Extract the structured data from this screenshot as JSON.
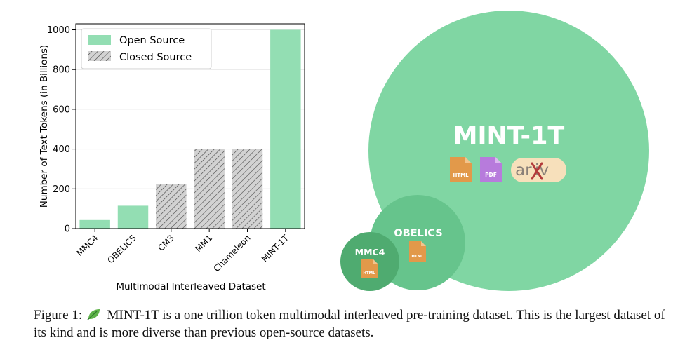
{
  "chart_data": {
    "type": "bar",
    "categories": [
      "MMC4",
      "OBELICS",
      "CM3",
      "MM1",
      "Chameleon",
      "MINT-1T"
    ],
    "values": [
      43,
      115,
      223,
      400,
      400,
      1000
    ],
    "source": [
      "Open Source",
      "Open Source",
      "Closed Source",
      "Closed Source",
      "Closed Source",
      "Open Source"
    ],
    "xlabel": "Multimodal Interleaved Dataset",
    "ylabel": "Number of Text Tokens (in Billions)",
    "ylim": [
      0,
      1030
    ],
    "yticks": [
      0,
      200,
      400,
      600,
      800,
      1000
    ],
    "legend": {
      "placement": "top-left",
      "entries": [
        {
          "label": "Open Source",
          "style": "solid"
        },
        {
          "label": "Closed Source",
          "style": "hatched"
        }
      ]
    },
    "grid": "horizontal",
    "colors": {
      "open": "#93deb3",
      "closed": "#d2d2d2",
      "hatch": "#444444"
    }
  },
  "diagram": {
    "mint": {
      "label": "MINT-1T",
      "icons": [
        "HTML",
        "PDF",
        "arXiv"
      ],
      "color": "#80d6a3"
    },
    "obelics": {
      "label": "OBELICS",
      "icon": "HTML",
      "color": "#66c48c"
    },
    "mmc4": {
      "label": "MMC4",
      "icon": "HTML",
      "color": "#4fab70"
    },
    "icon_colors": {
      "html": "#e2994a",
      "pdf": "#b77bdc",
      "arxiv_bg": "#f7e0bb",
      "arxiv_x": "#b33a3a"
    }
  },
  "caption": {
    "prefix": "Figure 1:",
    "text": "MINT-1T is a one trillion token multimodal interleaved pre-training dataset. This is the largest dataset of its kind and is more diverse than previous open-source datasets."
  }
}
